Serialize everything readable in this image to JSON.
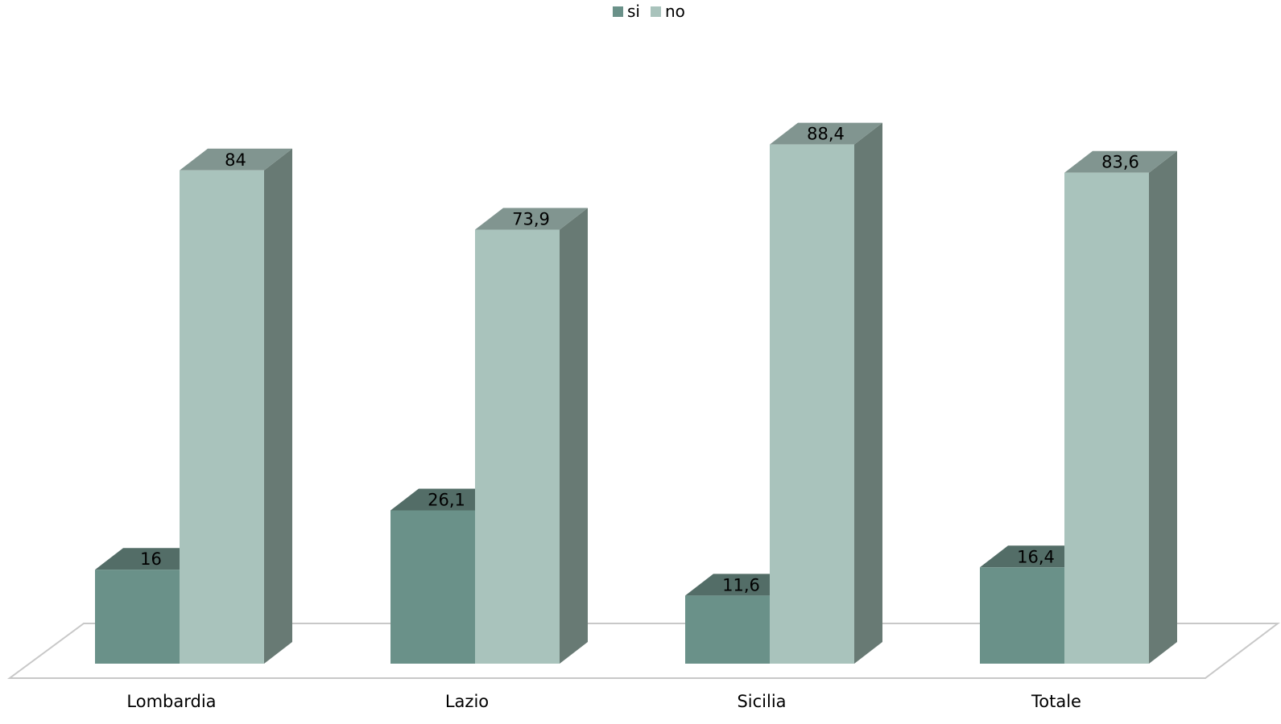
{
  "chart_data": {
    "type": "bar",
    "categories": [
      "Lombardia",
      "Lazio",
      "Sicilia",
      "Totale"
    ],
    "series": [
      {
        "name": "si",
        "values": [
          16,
          26.1,
          11.6,
          16.4
        ],
        "labels": [
          "16",
          "26,1",
          "11,6",
          "16,4"
        ]
      },
      {
        "name": "no",
        "values": [
          84,
          73.9,
          88.4,
          83.6
        ],
        "labels": [
          "84",
          "73,9",
          "88,4",
          "83,6"
        ]
      }
    ],
    "ylim": [
      0,
      100
    ],
    "legend_position": "top-center",
    "grid": false,
    "style": "3d-clustered-columns",
    "colors": {
      "si": {
        "front": "#6a9189",
        "top": "#536d67",
        "side": "#5c7a73"
      },
      "no": {
        "front": "#a9c3bc",
        "top": "#819590",
        "side": "#687a74"
      },
      "floor": "#c8c8c8"
    }
  }
}
